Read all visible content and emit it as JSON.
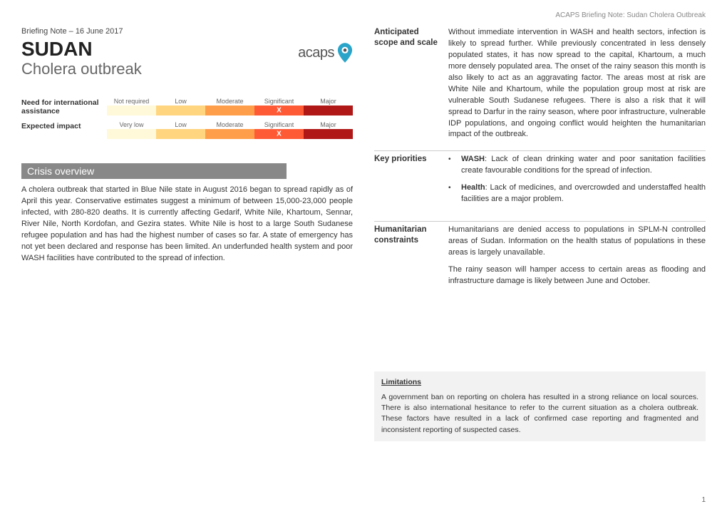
{
  "header_note": "ACAPS Briefing Note: Sudan Cholera Outbreak",
  "briefing_date": "Briefing Note – 16 June 2017",
  "main_title": "SUDAN",
  "subtitle": "Cholera outbreak",
  "logo_text": "acaps",
  "metrics": {
    "assistance": {
      "label": "Need for international assistance",
      "levels": [
        "Not required",
        "Low",
        "Moderate",
        "Significant",
        "Major"
      ],
      "colors": [
        "#fff9d9",
        "#ffd580",
        "#ff9e4a",
        "#ff5a36",
        "#b01717"
      ],
      "selected_index": 3
    },
    "impact": {
      "label": "Expected impact",
      "levels": [
        "Very low",
        "Low",
        "Moderate",
        "Significant",
        "Major"
      ],
      "colors": [
        "#fff9d9",
        "#ffd580",
        "#ff9e4a",
        "#ff5a36",
        "#b01717"
      ],
      "selected_index": 3
    }
  },
  "crisis_overview": {
    "heading": "Crisis overview",
    "text": "A cholera outbreak that started in Blue Nile state in August 2016 began to spread rapidly as of April this year. Conservative estimates suggest a minimum of between 15,000-23,000 people infected, with 280-820 deaths. It is currently affecting Gedarif, White Nile, Khartoum, Sennar, River Nile, North Kordofan, and Gezira states. White Nile is host to a large South Sudanese refugee population and has had the highest number of cases so far. A state of emergency has not yet been declared and response has been limited. An underfunded health system and poor WASH facilities have contributed to the spread of infection."
  },
  "anticipated": {
    "label": "Anticipated scope and scale",
    "text": "Without immediate intervention in WASH and health sectors, infection is likely to spread further. While previously concentrated in less densely populated states, it has now spread to the capital, Khartoum, a much more densely populated area. The onset of the rainy season this month is also likely to act as an aggravating factor. The areas most at risk are White Nile and Khartoum, while the population group most at risk are vulnerable South Sudanese refugees. There is also a risk that it will spread to Darfur in the rainy season, where poor infrastructure, vulnerable IDP populations, and ongoing conflict would heighten the humanitarian impact of the outbreak."
  },
  "priorities": {
    "label": "Key priorities",
    "items": [
      {
        "bold": "WASH",
        "text": ": Lack of clean drinking water and poor sanitation facilities create favourable conditions for the spread of infection."
      },
      {
        "bold": "Health",
        "text": ": Lack of medicines, and overcrowded and understaffed health facilities are a major problem."
      }
    ]
  },
  "constraints": {
    "label": "Humanitarian constraints",
    "p1": "Humanitarians are denied access to populations in SPLM-N controlled areas of Sudan. Information on the health status of populations in these areas is largely unavailable.",
    "p2": "The rainy season will hamper access to certain areas as flooding and infrastructure damage is likely between June and October."
  },
  "limitations": {
    "title": "Limitations",
    "text": "A government ban on reporting on cholera has resulted in a strong reliance on local sources. There is also international hesitance to refer to the current situation as a cholera outbreak. These factors have resulted in a lack of confirmed case reporting and fragmented and inconsistent reporting of suspected cases."
  },
  "page_number": "1"
}
